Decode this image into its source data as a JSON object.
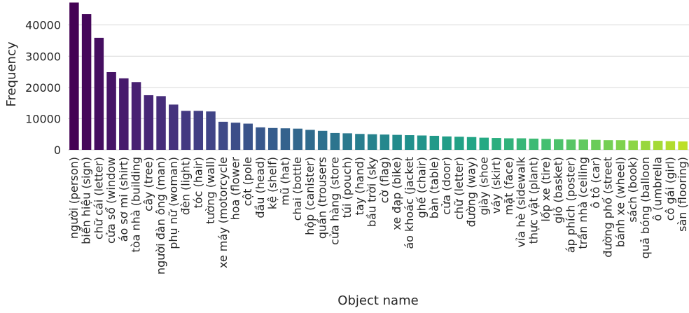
{
  "chart_data": {
    "type": "bar",
    "title": "",
    "xlabel": "Object name",
    "ylabel": "Frequency",
    "ylim": [
      0,
      48000
    ],
    "yticks": [
      0,
      10000,
      20000,
      30000,
      40000
    ],
    "grid": "y-major, light gray",
    "palette": "viridis",
    "categories": [
      "người (person)",
      "biển hiệu (sign)",
      "chữ cái (letter)",
      "cửa sổ (window",
      "áo sơ mi (shirt)",
      "tòa nhà (building",
      "cây (tree)",
      "người đàn ông (man)",
      "phụ nữ (woman)",
      "đèn (light)",
      "tóc (hair)",
      "tường (wall)",
      "xe máy (motorcycle",
      "hoa (flower",
      "cột (pole",
      "đầu (head)",
      "kệ (shelf)",
      "mũ (hat)",
      "chai (bottle",
      "hộp (canister)",
      "quần (trousers",
      "cửa hàng (store",
      "túi (pouch)",
      "tay (hand)",
      "bầu trời (sky",
      "cờ (flag)",
      "xe đạp (bike)",
      "áo khoác (jacket",
      "ghế (chair)",
      "bàn (table)",
      "cửa (door)",
      "chữ (letter)",
      "đường (way)",
      "giày (shoe",
      "váy (skirt)",
      "mặt (face)",
      "vỉa hè (sidewalk",
      "thực vật (plant)",
      "lốp xe (tire)",
      "giỏ (basket)",
      "áp phích (poster)",
      "trần nhà (ceiling",
      "ô tô (car)",
      "đường phố (street",
      "bánh xe (wheel)",
      "sách (book)",
      "quả bóng (balloon",
      "ô (umbrella",
      "cô gái (girl)",
      "sàn (flooring)"
    ],
    "values": [
      47200,
      43500,
      35900,
      24900,
      22900,
      21700,
      17500,
      17200,
      14500,
      12500,
      12500,
      12300,
      9000,
      8700,
      8400,
      7200,
      7000,
      6900,
      6800,
      6400,
      6100,
      5400,
      5300,
      5100,
      5000,
      4900,
      4800,
      4700,
      4600,
      4500,
      4300,
      4200,
      4100,
      3900,
      3800,
      3700,
      3700,
      3600,
      3500,
      3400,
      3300,
      3300,
      3200,
      3100,
      3100,
      3000,
      2900,
      2900,
      2800,
      2700
    ]
  }
}
